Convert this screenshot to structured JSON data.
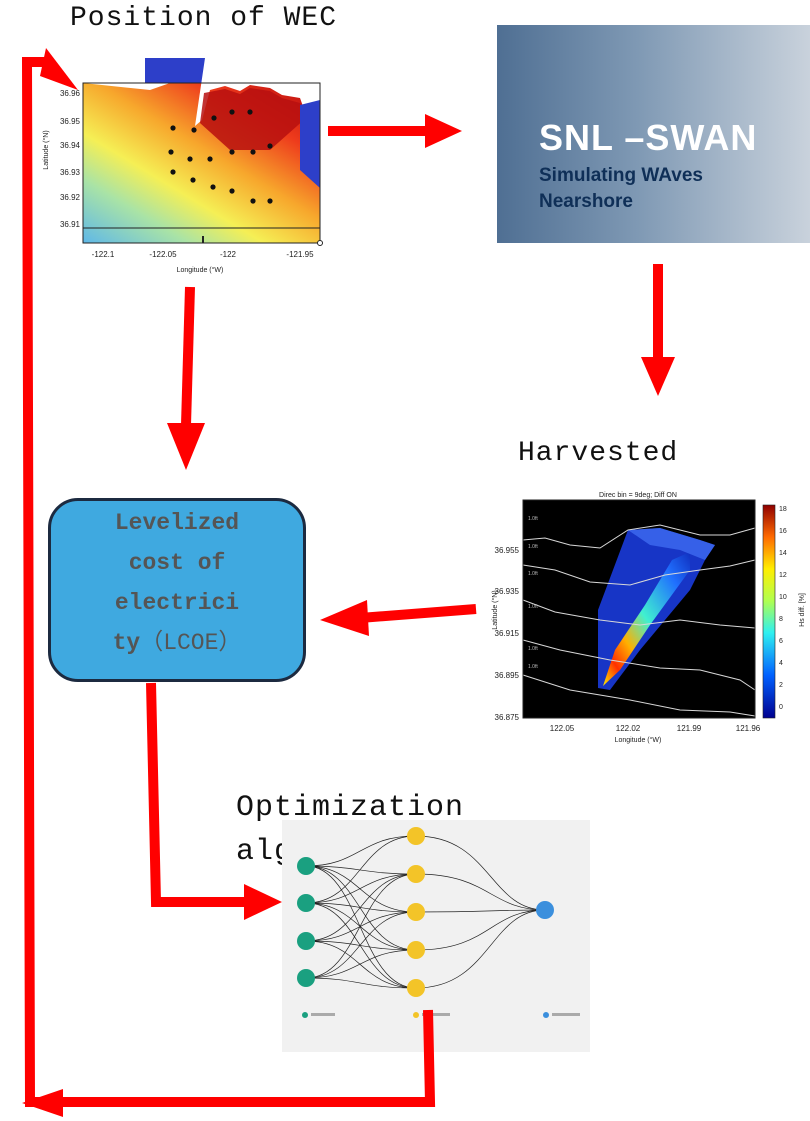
{
  "labels": {
    "position_of_wec": "Position of WEC",
    "harvested_power": "Harvested power",
    "optimization": "Optimization algorithm"
  },
  "swan": {
    "title": "SNL –SWAN",
    "line1": "Simulating WAves",
    "line2": "Nearshore"
  },
  "lcoe": {
    "line1": "Levelized",
    "line2": "cost of",
    "line3": "electrici",
    "line4": "ty",
    "line4_paren": "（LCOE）"
  },
  "wec_map": {
    "ylabel": "Latitude (°N)",
    "xlabel": "Longitude (°W)",
    "yticks": [
      "36.96",
      "36.95",
      "36.94",
      "36.93",
      "36.92",
      "36.91"
    ],
    "xticks": [
      "-122.1",
      "-122.05",
      "-122",
      "-121.95"
    ]
  },
  "power_map": {
    "title": "Direc bin = 9deg; Diff ON",
    "ylabel": "Latitude (°N)",
    "xlabel": "Longitude (°W)",
    "yticks": [
      "36.955",
      "36.935",
      "36.915",
      "36.895",
      "36.875"
    ],
    "xticks": [
      "122.05",
      "122.02",
      "121.99",
      "121.96"
    ],
    "colorbar_label": "Hs diff. [%]",
    "colorbar_ticks": [
      "18",
      "16",
      "14",
      "12",
      "10",
      "8",
      "6",
      "4",
      "2",
      "0"
    ]
  },
  "colors": {
    "arrow": "#ff0000",
    "lcoe_fill": "#3fa9e0",
    "input_node": "#1aa080",
    "hidden_node": "#f3c428",
    "output_node": "#3b8fdd"
  }
}
